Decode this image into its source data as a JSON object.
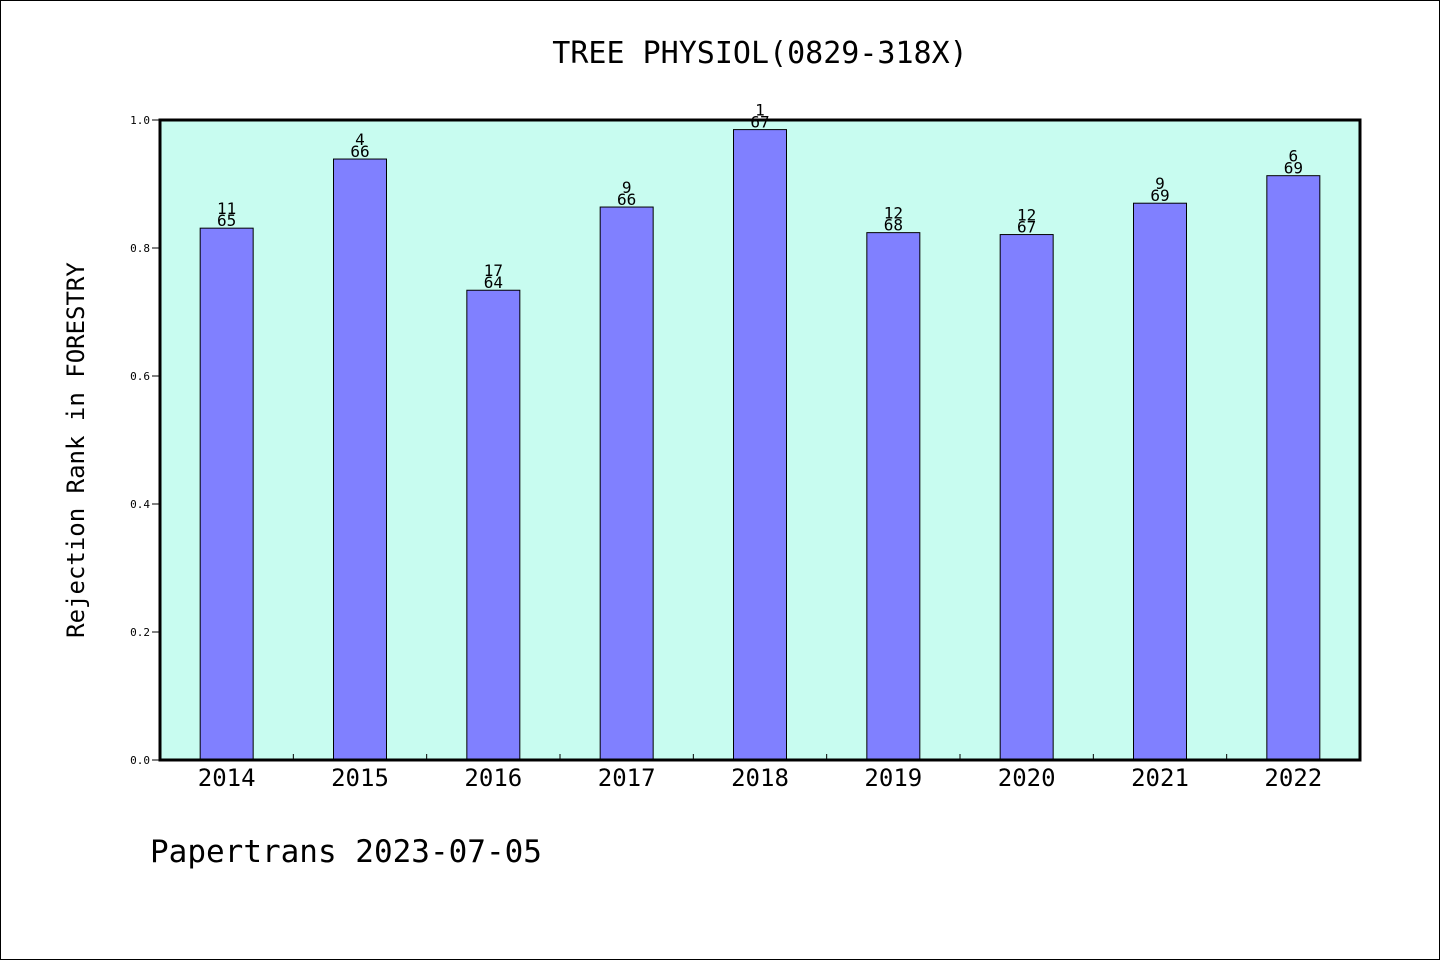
{
  "chart_data": {
    "type": "bar",
    "title": "TREE PHYSIOL(0829-318X)",
    "xlabel": "",
    "ylabel": "Rejection Rank in FORESTRY",
    "ylim": [
      0,
      1.0
    ],
    "yticks": [
      "0.0",
      "0.2",
      "0.4",
      "0.6",
      "0.8",
      "1.0"
    ],
    "categories": [
      "2014",
      "2015",
      "2016",
      "2017",
      "2018",
      "2019",
      "2020",
      "2021",
      "2022"
    ],
    "values": [
      0.831,
      0.939,
      0.734,
      0.864,
      0.985,
      0.824,
      0.821,
      0.87,
      0.913
    ],
    "label_top": [
      "11",
      "4",
      "17",
      "9",
      "1",
      "12",
      "12",
      "9",
      "6"
    ],
    "label_bottom": [
      "65",
      "66",
      "64",
      "66",
      "67",
      "68",
      "67",
      "69",
      "69"
    ],
    "grid": false,
    "legend": "none",
    "colors": {
      "plot_background": "#c8fcf0",
      "bar_fill": "#8080ff",
      "bar_stroke": "#000000"
    }
  },
  "footer": "Papertrans 2023-07-05"
}
